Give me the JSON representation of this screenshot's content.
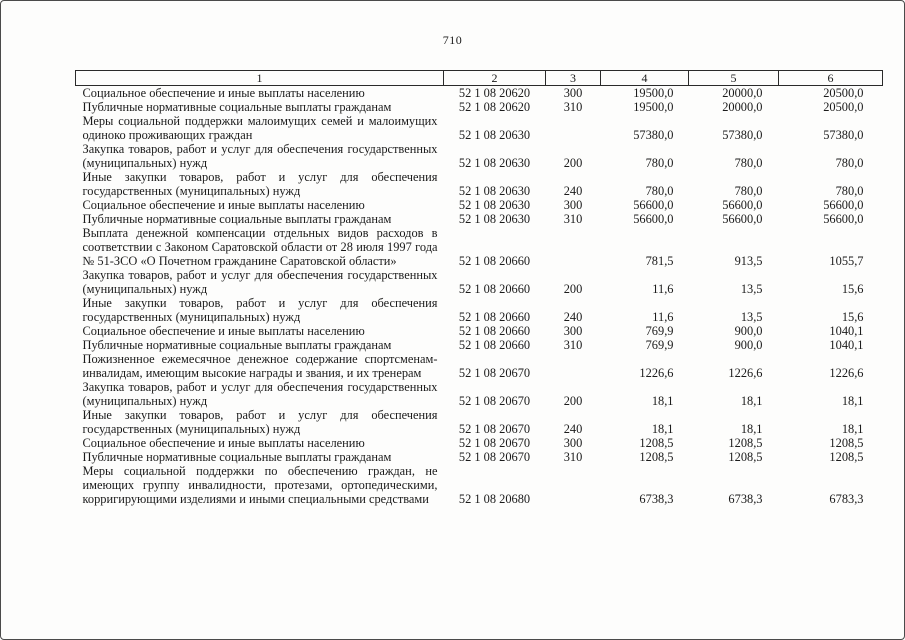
{
  "page": {
    "number": "710"
  },
  "table": {
    "columns": [
      "1",
      "2",
      "3",
      "4",
      "5",
      "6"
    ],
    "rows": [
      {
        "name": "Социальное обеспечение и иные выплаты населению",
        "code": "52 1 08 20620",
        "expense_type": "300",
        "amount_col4": "19500,0",
        "amount_col5": "20000,0",
        "amount_col6": "20500,0"
      },
      {
        "name": "Публичные нормативные социальные выплаты гражданам",
        "code": "52 1 08 20620",
        "expense_type": "310",
        "amount_col4": "19500,0",
        "amount_col5": "20000,0",
        "amount_col6": "20500,0"
      },
      {
        "name": "Меры социальной поддержки малоимущих семей и малоимущих одиноко проживающих граждан",
        "code": "52 1 08 20630",
        "expense_type": "",
        "amount_col4": "57380,0",
        "amount_col5": "57380,0",
        "amount_col6": "57380,0"
      },
      {
        "name": "Закупка товаров, работ и услуг для обеспечения государственных (муниципальных) нужд",
        "code": "52 1 08 20630",
        "expense_type": "200",
        "amount_col4": "780,0",
        "amount_col5": "780,0",
        "amount_col6": "780,0"
      },
      {
        "name": "Иные закупки товаров, работ и услуг для обеспечения государственных (муниципальных) нужд",
        "code": "52 1 08 20630",
        "expense_type": "240",
        "amount_col4": "780,0",
        "amount_col5": "780,0",
        "amount_col6": "780,0"
      },
      {
        "name": "Социальное обеспечение и иные выплаты населению",
        "code": "52 1 08 20630",
        "expense_type": "300",
        "amount_col4": "56600,0",
        "amount_col5": "56600,0",
        "amount_col6": "56600,0"
      },
      {
        "name": "Публичные нормативные социальные выплаты гражданам",
        "code": "52 1 08 20630",
        "expense_type": "310",
        "amount_col4": "56600,0",
        "amount_col5": "56600,0",
        "amount_col6": "56600,0"
      },
      {
        "name": "Выплата денежной компенсации отдельных видов расходов в соответствии с Законом Саратовской области от 28 июля 1997 года № 51-ЗСО «О Почетном гражданине Саратовской области»",
        "code": "52 1 08 20660",
        "expense_type": "",
        "amount_col4": "781,5",
        "amount_col5": "913,5",
        "amount_col6": "1055,7"
      },
      {
        "name": "Закупка товаров, работ и услуг для обеспечения государственных (муниципальных) нужд",
        "code": "52 1 08 20660",
        "expense_type": "200",
        "amount_col4": "11,6",
        "amount_col5": "13,5",
        "amount_col6": "15,6"
      },
      {
        "name": "Иные закупки товаров, работ и услуг для обеспечения государственных (муниципальных) нужд",
        "code": "52 1 08 20660",
        "expense_type": "240",
        "amount_col4": "11,6",
        "amount_col5": "13,5",
        "amount_col6": "15,6"
      },
      {
        "name": "Социальное обеспечение и иные выплаты населению",
        "code": "52 1 08 20660",
        "expense_type": "300",
        "amount_col4": "769,9",
        "amount_col5": "900,0",
        "amount_col6": "1040,1"
      },
      {
        "name": "Публичные нормативные социальные выплаты гражданам",
        "code": "52 1 08 20660",
        "expense_type": "310",
        "amount_col4": "769,9",
        "amount_col5": "900,0",
        "amount_col6": "1040,1"
      },
      {
        "name": "Пожизненное ежемесячное денежное содержание спортсменам-инвалидам, имеющим высокие награды и звания, и их тренерам",
        "code": "52 1 08 20670",
        "expense_type": "",
        "amount_col4": "1226,6",
        "amount_col5": "1226,6",
        "amount_col6": "1226,6"
      },
      {
        "name": "Закупка товаров, работ и услуг для обеспечения государственных (муниципальных) нужд",
        "code": "52 1 08 20670",
        "expense_type": "200",
        "amount_col4": "18,1",
        "amount_col5": "18,1",
        "amount_col6": "18,1"
      },
      {
        "name": "Иные закупки товаров, работ и услуг для обеспечения государственных (муниципальных) нужд",
        "code": "52 1 08 20670",
        "expense_type": "240",
        "amount_col4": "18,1",
        "amount_col5": "18,1",
        "amount_col6": "18,1"
      },
      {
        "name": "Социальное обеспечение и иные выплаты населению",
        "code": "52 1 08 20670",
        "expense_type": "300",
        "amount_col4": "1208,5",
        "amount_col5": "1208,5",
        "amount_col6": "1208,5"
      },
      {
        "name": "Публичные нормативные социальные выплаты гражданам",
        "code": "52 1 08 20670",
        "expense_type": "310",
        "amount_col4": "1208,5",
        "amount_col5": "1208,5",
        "amount_col6": "1208,5"
      },
      {
        "name": "Меры социальной поддержки по обеспечению граждан, не имеющих группу инвалидности, протезами, ортопедическими, корригирующими изделиями и иными специальными средствами",
        "code": "52 1 08 20680",
        "expense_type": "",
        "amount_col4": "6738,3",
        "amount_col5": "6738,3",
        "amount_col6": "6783,3"
      }
    ]
  }
}
